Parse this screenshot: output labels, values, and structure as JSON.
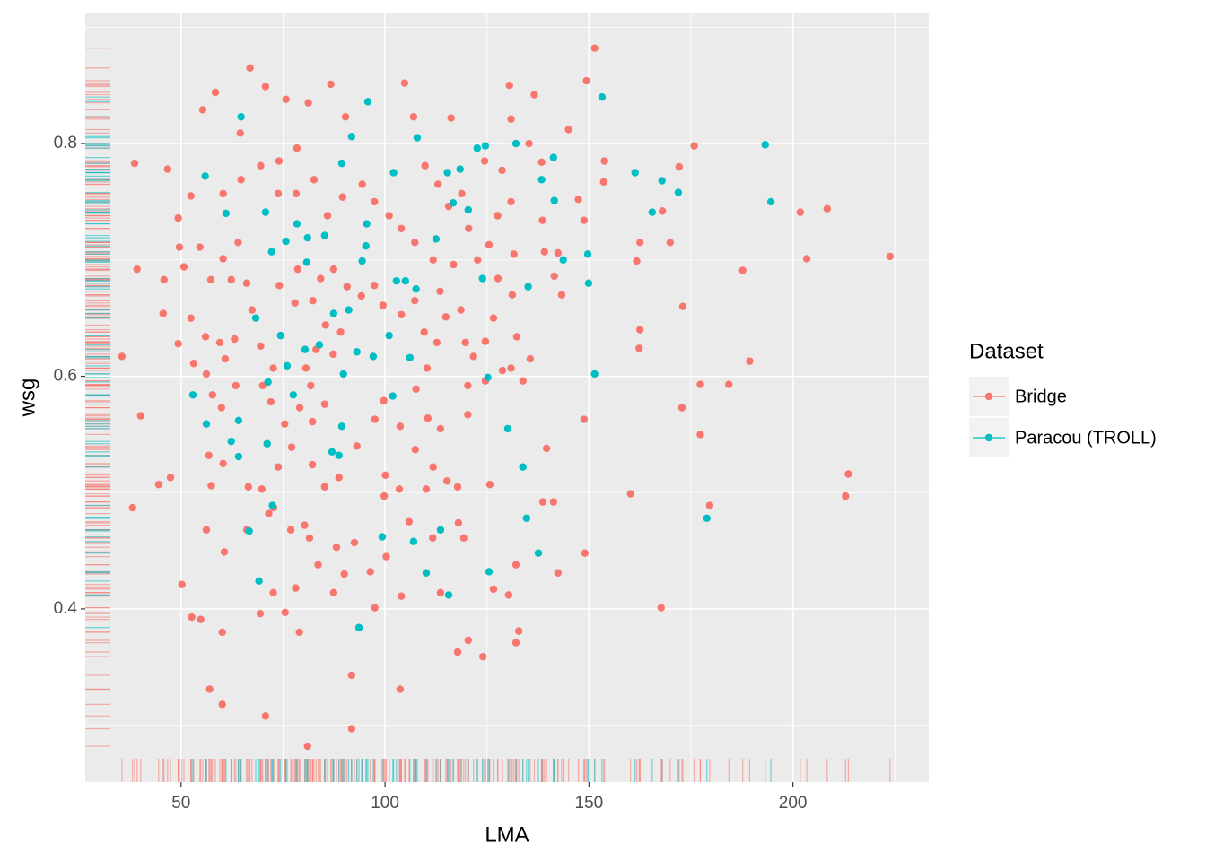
{
  "chart_data": {
    "type": "scatter",
    "x_label": "LMA",
    "y_label": "wsg",
    "legend_title": "Dataset",
    "legend_position": "right",
    "grid": true,
    "rug": true,
    "xlim": [
      26.5,
      233.3
    ],
    "ylim": [
      0.2512,
      0.9126
    ],
    "xticks": [
      50,
      100,
      150,
      200
    ],
    "yticks": [
      0.4,
      0.6,
      0.8
    ],
    "x_minor_grid": [
      75,
      125,
      175,
      225
    ],
    "y_minor_grid": [
      0.3,
      0.5,
      0.7,
      0.9
    ],
    "series": [
      {
        "name": "Bridge",
        "color": "#F8766D",
        "x": [
          151.4,
          149.4,
          66.9,
          104.8,
          86.7,
          70.7,
          58.4,
          130.5,
          136.6,
          75.7,
          81.2,
          55.3,
          90.3,
          107.0,
          116.2,
          130.9,
          145.0,
          64.5,
          38.6,
          46.7,
          52.4,
          49.3,
          49.6,
          39.2,
          35.5,
          40.1,
          38.1,
          47.4,
          44.5,
          50.2,
          52.6,
          54.8,
          60.1,
          57.0,
          60.1,
          70.7,
          81.0,
          91.8,
          91.8,
          103.7,
          79.0,
          75.5,
          69.4,
          97.5,
          117.8,
          120.4,
          124.0,
          132.1,
          132.8,
          167.7,
          126.6,
          130.3,
          142.4,
          149.0,
          132.1,
          138.7,
          141.3,
          160.2,
          179.6,
          212.9,
          213.6,
          148.8,
          139.6,
          125.7,
          117.8,
          177.3,
          177.3,
          184.3,
          189.4,
          162.3,
          162.5,
          172.8,
          173.0,
          187.7,
          162.5,
          161.7,
          169.9,
          172.1,
          175.8,
          201.8,
          208.4,
          203.4,
          223.8,
          168.0,
          153.8,
          153.6,
          148.8,
          143.3,
          141.5,
          142.4,
          139.1,
          131.6,
          131.2,
          132.3,
          135.6,
          133.8,
          128.8,
          124.6,
          121.7,
          119.7,
          118.6,
          114.9,
          112.7,
          110.3,
          107.6,
          110.5,
          113.6,
          115.2,
          111.8,
          107.4,
          103.7,
          99.7,
          97.5,
          93.1,
          88.7,
          85.2,
          82.2,
          77.1,
          73.8,
          69.8,
          66.5,
          60.3,
          56.8,
          57.4,
          57.7,
          59.9,
          63.4,
          56.2,
          53.1,
          60.8,
          59.5,
          56.0,
          52.4,
          49.3,
          45.6,
          45.8,
          50.7,
          54.6,
          57.3,
          60.3,
          64.0,
          62.3,
          66.1,
          67.4,
          63.1,
          69.5,
          72.6,
          70.0,
          72.0,
          75.4,
          79.1,
          82.2,
          85.2,
          81.8,
          80.6,
          83.1,
          87.3,
          89.1,
          85.4,
          82.3,
          77.9,
          74.1,
          78.6,
          84.2,
          87.4,
          90.7,
          94.2,
          97.4,
          99.5,
          104.0,
          107.3,
          109.6,
          113.5,
          111.8,
          107.3,
          104.0,
          101.0,
          97.4,
          94.4,
          89.6,
          85.9,
          82.6,
          78.4,
          74.0,
          69.5,
          64.7,
          60.3,
          73.8,
          78.2,
          109.8,
          113.0,
          115.6,
          118.8,
          124.4,
          128.7,
          135.3,
          127.6,
          130.9,
          125.5,
          120.5,
          116.8,
          122.7,
          127.7,
          126.6,
          100.1,
          103.5,
          110.1,
          99.8,
          92.5,
          88.1,
          81.5,
          76.9,
          72.7,
          80.3,
          83.6,
          78.1,
          72.6,
          87.4,
          90.0,
          96.4,
          100.3,
          105.9,
          104.0,
          113.6,
          111.7,
          119.3,
          118.0,
          71.5,
          66.1,
          60.6,
          56.2,
          120.3,
          120.3,
          124.6,
          130.9,
          138.6,
          147.4,
          138.4
        ],
        "values": [
          0.882,
          0.854,
          0.865,
          0.852,
          0.851,
          0.849,
          0.844,
          0.85,
          0.842,
          0.838,
          0.835,
          0.829,
          0.823,
          0.823,
          0.822,
          0.821,
          0.812,
          0.809,
          0.783,
          0.778,
          0.755,
          0.736,
          0.711,
          0.692,
          0.617,
          0.566,
          0.487,
          0.513,
          0.507,
          0.421,
          0.393,
          0.391,
          0.38,
          0.331,
          0.318,
          0.308,
          0.282,
          0.297,
          0.343,
          0.331,
          0.38,
          0.397,
          0.396,
          0.401,
          0.363,
          0.373,
          0.359,
          0.371,
          0.381,
          0.401,
          0.417,
          0.412,
          0.431,
          0.448,
          0.438,
          0.492,
          0.492,
          0.499,
          0.489,
          0.497,
          0.516,
          0.563,
          0.538,
          0.507,
          0.505,
          0.55,
          0.593,
          0.593,
          0.613,
          0.624,
          0.64,
          0.573,
          0.66,
          0.691,
          0.715,
          0.699,
          0.715,
          0.78,
          0.798,
          0.741,
          0.744,
          0.701,
          0.703,
          0.742,
          0.785,
          0.767,
          0.734,
          0.67,
          0.686,
          0.706,
          0.707,
          0.705,
          0.67,
          0.634,
          0.615,
          0.596,
          0.605,
          0.63,
          0.617,
          0.629,
          0.657,
          0.651,
          0.629,
          0.607,
          0.589,
          0.564,
          0.555,
          0.51,
          0.522,
          0.537,
          0.557,
          0.579,
          0.563,
          0.54,
          0.513,
          0.505,
          0.524,
          0.539,
          0.522,
          0.503,
          0.505,
          0.525,
          0.532,
          0.506,
          0.584,
          0.573,
          0.592,
          0.602,
          0.611,
          0.615,
          0.629,
          0.634,
          0.65,
          0.628,
          0.654,
          0.683,
          0.694,
          0.711,
          0.683,
          0.701,
          0.715,
          0.683,
          0.68,
          0.657,
          0.632,
          0.626,
          0.607,
          0.592,
          0.578,
          0.559,
          0.573,
          0.561,
          0.576,
          0.592,
          0.607,
          0.623,
          0.619,
          0.638,
          0.644,
          0.665,
          0.663,
          0.678,
          0.692,
          0.684,
          0.692,
          0.677,
          0.669,
          0.678,
          0.661,
          0.653,
          0.665,
          0.638,
          0.673,
          0.7,
          0.715,
          0.727,
          0.738,
          0.75,
          0.765,
          0.754,
          0.738,
          0.769,
          0.796,
          0.785,
          0.781,
          0.769,
          0.757,
          0.757,
          0.757,
          0.781,
          0.765,
          0.746,
          0.757,
          0.785,
          0.777,
          0.8,
          0.738,
          0.75,
          0.713,
          0.727,
          0.696,
          0.7,
          0.684,
          0.65,
          0.515,
          0.503,
          0.503,
          0.497,
          0.457,
          0.453,
          0.461,
          0.468,
          0.487,
          0.472,
          0.438,
          0.418,
          0.414,
          0.414,
          0.43,
          0.432,
          0.445,
          0.475,
          0.411,
          0.414,
          0.461,
          0.461,
          0.474,
          0.482,
          0.468,
          0.449,
          0.468,
          0.567,
          0.592,
          0.596,
          0.607,
          0.734,
          0.752,
          0.784
        ]
      },
      {
        "name": "Paracou (TROLL)",
        "color": "#00BFC4",
        "x": [
          64.7,
          55.9,
          61.0,
          70.7,
          72.2,
          78.4,
          75.7,
          81.0,
          85.2,
          80.8,
          89.4,
          91.8,
          95.8,
          102.1,
          107.9,
          95.5,
          95.3,
          94.4,
          91.1,
          87.4,
          83.9,
          80.4,
          76.0,
          68.3,
          74.4,
          77.5,
          71.3,
          93.1,
          97.1,
          101.0,
          101.9,
          106.1,
          102.8,
          105.0,
          107.6,
          112.5,
          115.3,
          118.4,
          122.6,
          124.6,
          132.1,
          141.3,
          138.4,
          141.5,
          143.7,
          149.7,
          149.9,
          153.2,
          161.3,
          167.9,
          165.5,
          171.9,
          193.2,
          194.6,
          125.2,
          130.1,
          133.8,
          134.7,
          137.6,
          125.5,
          115.6,
          110.1,
          113.6,
          107.0,
          99.3,
          93.6,
          72.4,
          66.7,
          69.1,
          64.1,
          52.9,
          56.2,
          62.3,
          71.1,
          64.1,
          178.9,
          123.9,
          135.1,
          151.4,
          116.7,
          120.4,
          89.8,
          89.4,
          87.0,
          88.7
        ],
        "values": [
          0.823,
          0.772,
          0.74,
          0.741,
          0.707,
          0.731,
          0.716,
          0.719,
          0.721,
          0.698,
          0.783,
          0.806,
          0.836,
          0.775,
          0.805,
          0.731,
          0.712,
          0.699,
          0.657,
          0.654,
          0.627,
          0.623,
          0.609,
          0.65,
          0.635,
          0.584,
          0.595,
          0.621,
          0.617,
          0.635,
          0.583,
          0.616,
          0.682,
          0.682,
          0.675,
          0.718,
          0.775,
          0.778,
          0.796,
          0.798,
          0.8,
          0.788,
          0.769,
          0.751,
          0.7,
          0.705,
          0.68,
          0.84,
          0.775,
          0.768,
          0.741,
          0.758,
          0.799,
          0.75,
          0.599,
          0.555,
          0.522,
          0.478,
          0.448,
          0.432,
          0.412,
          0.431,
          0.468,
          0.458,
          0.462,
          0.384,
          0.489,
          0.467,
          0.424,
          0.562,
          0.584,
          0.559,
          0.544,
          0.542,
          0.531,
          0.478,
          0.684,
          0.677,
          0.602,
          0.749,
          0.743,
          0.602,
          0.557,
          0.535,
          0.532
        ]
      }
    ]
  }
}
